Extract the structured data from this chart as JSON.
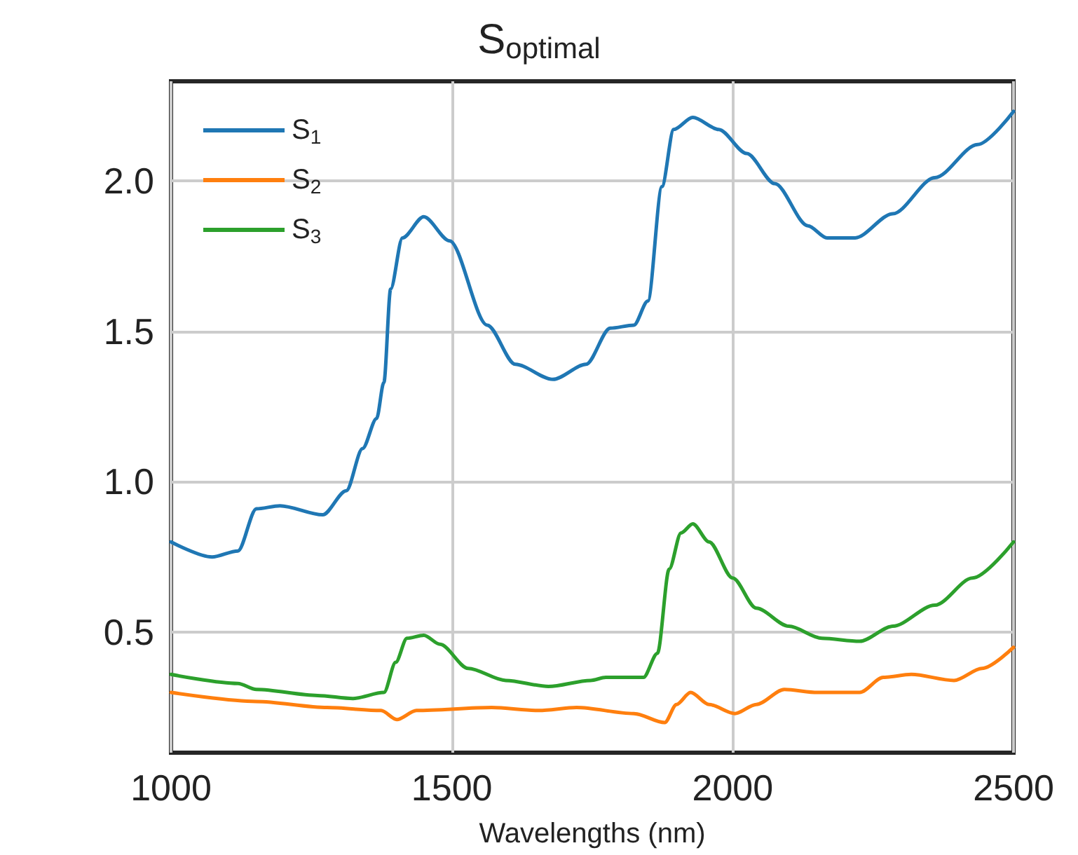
{
  "chart_data": {
    "type": "line",
    "title": "S$_{optimal}$",
    "xlabel": "Wavelengths (nm)",
    "xlim": [
      1000,
      2500
    ],
    "xticks": [
      1000,
      1500,
      2000,
      2500
    ],
    "ylim": [
      0.1,
      2.33
    ],
    "yticks": [
      {
        "value": 0.5,
        "label": "0.5"
      },
      {
        "value": 1,
        "label": "1.0"
      },
      {
        "value": 1.5,
        "label": "1.5"
      },
      {
        "value": 2,
        "label": "2.0"
      }
    ],
    "grid": true,
    "legend": "top left",
    "marker": "none",
    "line_style": "solid",
    "series": [
      {
        "name": "S$_{1}$",
        "color": "#1f77b4",
        "x": [
          1000,
          1073,
          1119,
          1152,
          1194,
          1270,
          1312,
          1341,
          1366,
          1379,
          1391,
          1412,
          1450,
          1496,
          1563,
          1613,
          1680,
          1739,
          1782,
          1824,
          1849,
          1874,
          1895,
          1929,
          1975,
          2025,
          2075,
          2134,
          2168,
          2218,
          2285,
          2360,
          2436,
          2500
        ],
        "values": [
          0.8,
          0.75,
          0.77,
          0.91,
          0.92,
          0.89,
          0.97,
          1.11,
          1.21,
          1.33,
          1.64,
          1.81,
          1.88,
          1.8,
          1.52,
          1.39,
          1.34,
          1.39,
          1.51,
          1.52,
          1.6,
          1.98,
          2.17,
          2.21,
          2.17,
          2.09,
          1.99,
          1.85,
          1.81,
          1.81,
          1.89,
          2.01,
          2.12,
          2.23
        ]
      },
      {
        "name": "S$_{2}$",
        "color": "#ff7f0e",
        "x": [
          1000,
          1152,
          1278,
          1374,
          1402,
          1437,
          1571,
          1655,
          1722,
          1824,
          1879,
          1900,
          1925,
          1958,
          2004,
          2042,
          2092,
          2151,
          2226,
          2268,
          2318,
          2394,
          2444,
          2500
        ],
        "values": [
          0.3,
          0.27,
          0.25,
          0.24,
          0.21,
          0.24,
          0.25,
          0.24,
          0.25,
          0.23,
          0.2,
          0.26,
          0.3,
          0.26,
          0.23,
          0.26,
          0.31,
          0.3,
          0.3,
          0.35,
          0.36,
          0.34,
          0.38,
          0.45
        ]
      },
      {
        "name": "S$_{3}$",
        "color": "#2ca02c",
        "x": [
          1000,
          1119,
          1152,
          1261,
          1324,
          1379,
          1400,
          1420,
          1450,
          1479,
          1529,
          1596,
          1672,
          1747,
          1774,
          1841,
          1866,
          1887,
          1908,
          1929,
          1958,
          2000,
          2042,
          2100,
          2159,
          2226,
          2285,
          2360,
          2427,
          2500
        ],
        "values": [
          0.36,
          0.33,
          0.31,
          0.29,
          0.28,
          0.3,
          0.4,
          0.48,
          0.49,
          0.46,
          0.38,
          0.34,
          0.32,
          0.34,
          0.35,
          0.35,
          0.43,
          0.71,
          0.83,
          0.86,
          0.8,
          0.68,
          0.58,
          0.52,
          0.48,
          0.47,
          0.52,
          0.59,
          0.68,
          0.8
        ]
      }
    ]
  }
}
